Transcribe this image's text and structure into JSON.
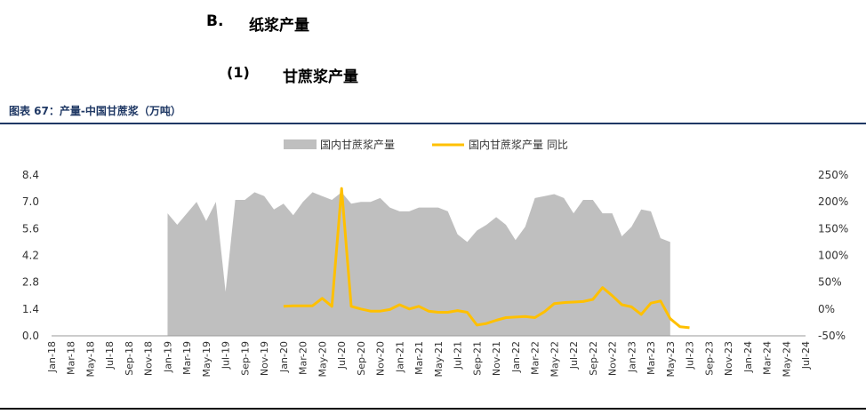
{
  "section": {
    "b_label": "B.",
    "b_title": "纸浆产量",
    "sub_label": "(1)",
    "sub_title": "甘蔗浆产量"
  },
  "figure_caption": "图表 67：产量-中国甘蔗浆（万吨）",
  "colors": {
    "area": "#bfbfbf",
    "line": "#ffc000",
    "caption": "#1f3864"
  },
  "chart_data": {
    "type": "area",
    "legend_position": "top-center",
    "grid": false,
    "x_tick_labels": [
      "Jan-18",
      "Mar-18",
      "May-18",
      "Jul-18",
      "Sep-18",
      "Nov-18",
      "Jan-19",
      "Mar-19",
      "May-19",
      "Jul-19",
      "Sep-19",
      "Nov-19",
      "Jan-20",
      "Mar-20",
      "May-20",
      "Jul-20",
      "Sep-20",
      "Nov-20",
      "Jan-21",
      "Mar-21",
      "May-21",
      "Jul-21",
      "Sep-21",
      "Nov-21",
      "Jan-22",
      "Mar-22",
      "May-22",
      "Jul-22",
      "Sep-22",
      "Nov-22",
      "Jan-23",
      "Mar-23",
      "May-23",
      "Jul-23",
      "Sep-23",
      "Nov-23",
      "Jan-24",
      "Mar-24",
      "May-24",
      "Jul-24"
    ],
    "x_range_months": [
      0,
      78
    ],
    "y_left": {
      "min": 0,
      "max": 8.4,
      "ticks": [
        "0.0",
        "1.4",
        "2.8",
        "4.2",
        "5.6",
        "7.0",
        "8.4"
      ]
    },
    "y_right": {
      "min": -50,
      "max": 250,
      "ticks": [
        "-50%",
        "0%",
        "50%",
        "100%",
        "150%",
        "200%",
        "250%"
      ]
    },
    "series": [
      {
        "name": "国内甘蔗浆产量",
        "kind": "area",
        "axis": "left",
        "start_month": 12,
        "values": [
          6.4,
          5.8,
          6.4,
          7.0,
          6.0,
          7.0,
          2.3,
          7.1,
          7.1,
          7.5,
          7.3,
          6.6,
          6.9,
          6.3,
          7.0,
          7.5,
          7.3,
          7.1,
          7.5,
          6.9,
          7.0,
          7.0,
          7.2,
          6.7,
          6.5,
          6.5,
          6.7,
          6.7,
          6.7,
          6.5,
          5.3,
          4.9,
          5.5,
          5.8,
          6.2,
          5.8,
          5.0,
          5.7,
          7.2,
          7.3,
          7.4,
          7.2,
          6.4,
          7.1,
          7.1,
          6.4,
          6.4,
          5.2,
          5.7,
          6.6,
          6.5,
          5.1,
          4.9
        ]
      },
      {
        "name": "国内甘蔗浆产量 同比",
        "kind": "line",
        "axis": "right",
        "start_month": 24,
        "values": [
          5,
          6,
          6,
          6,
          20,
          5,
          225,
          5,
          0,
          -4,
          -4,
          -1,
          8,
          0,
          5,
          -4,
          -6,
          -6,
          -3,
          -6,
          -30,
          -27,
          -21,
          -16,
          -15,
          -14,
          -16,
          -5,
          10,
          12,
          13,
          14,
          18,
          40,
          25,
          8,
          4,
          -10,
          11,
          15,
          -18,
          -33,
          -35
        ]
      }
    ]
  }
}
